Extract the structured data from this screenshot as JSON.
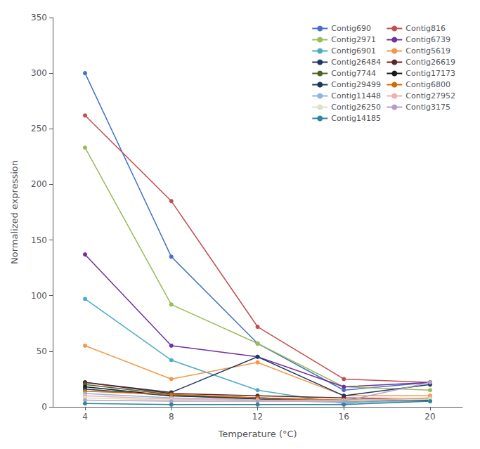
{
  "chart_data": {
    "type": "line",
    "xlabel": "Temperature (°C)",
    "ylabel": "Normalized expression",
    "x": [
      4,
      8,
      12,
      16,
      20
    ],
    "series": [
      {
        "name": "Contig690",
        "color": "#4472C4",
        "values": [
          300,
          135,
          57,
          15,
          22
        ]
      },
      {
        "name": "Contig816",
        "color": "#C0504D",
        "values": [
          262,
          185,
          72,
          25,
          22
        ]
      },
      {
        "name": "Contig2971",
        "color": "#9BBB59",
        "values": [
          233,
          92,
          57,
          18,
          15
        ]
      },
      {
        "name": "Contig6739",
        "color": "#7030A0",
        "values": [
          137,
          55,
          45,
          18,
          22
        ]
      },
      {
        "name": "Contig6901",
        "color": "#4BACC6",
        "values": [
          97,
          42,
          15,
          3,
          8
        ]
      },
      {
        "name": "Contig5619",
        "color": "#F79646",
        "values": [
          55,
          25,
          40,
          10,
          10
        ]
      },
      {
        "name": "Contig26484",
        "color": "#1F3864",
        "values": [
          22,
          13,
          45,
          10,
          20
        ]
      },
      {
        "name": "Contig26619",
        "color": "#632523",
        "values": [
          22,
          12,
          10,
          8,
          7
        ]
      },
      {
        "name": "Contig7744",
        "color": "#4F6228",
        "values": [
          20,
          11,
          8,
          6,
          7
        ]
      },
      {
        "name": "Contig17173",
        "color": "#1A1A1A",
        "values": [
          18,
          10,
          8,
          5,
          7
        ]
      },
      {
        "name": "Contig29499",
        "color": "#17375E",
        "values": [
          16,
          10,
          7,
          5,
          6
        ]
      },
      {
        "name": "Contig6800",
        "color": "#D46A00",
        "values": [
          14,
          11,
          8,
          6,
          7
        ]
      },
      {
        "name": "Contig11448",
        "color": "#8DB4E2",
        "values": [
          12,
          8,
          6,
          4,
          5
        ]
      },
      {
        "name": "Contig27952",
        "color": "#F4AFAB",
        "values": [
          10,
          7,
          6,
          6,
          8
        ]
      },
      {
        "name": "Contig26250",
        "color": "#D8E4BC",
        "values": [
          8,
          6,
          5,
          5,
          7
        ]
      },
      {
        "name": "Contig3175",
        "color": "#B3A2C7",
        "values": [
          6,
          5,
          5,
          5,
          22
        ]
      },
      {
        "name": "Contig14185",
        "color": "#31849B",
        "values": [
          3,
          2,
          2,
          2,
          5
        ]
      }
    ],
    "xlim": [
      2.5,
      21.5
    ],
    "xticks": [
      4,
      8,
      12,
      16,
      20
    ],
    "ylim": [
      0,
      350
    ],
    "yticks": [
      0,
      50,
      100,
      150,
      200,
      250,
      300,
      350
    ],
    "grid": false,
    "legend": "upper right",
    "marker": "circle"
  }
}
